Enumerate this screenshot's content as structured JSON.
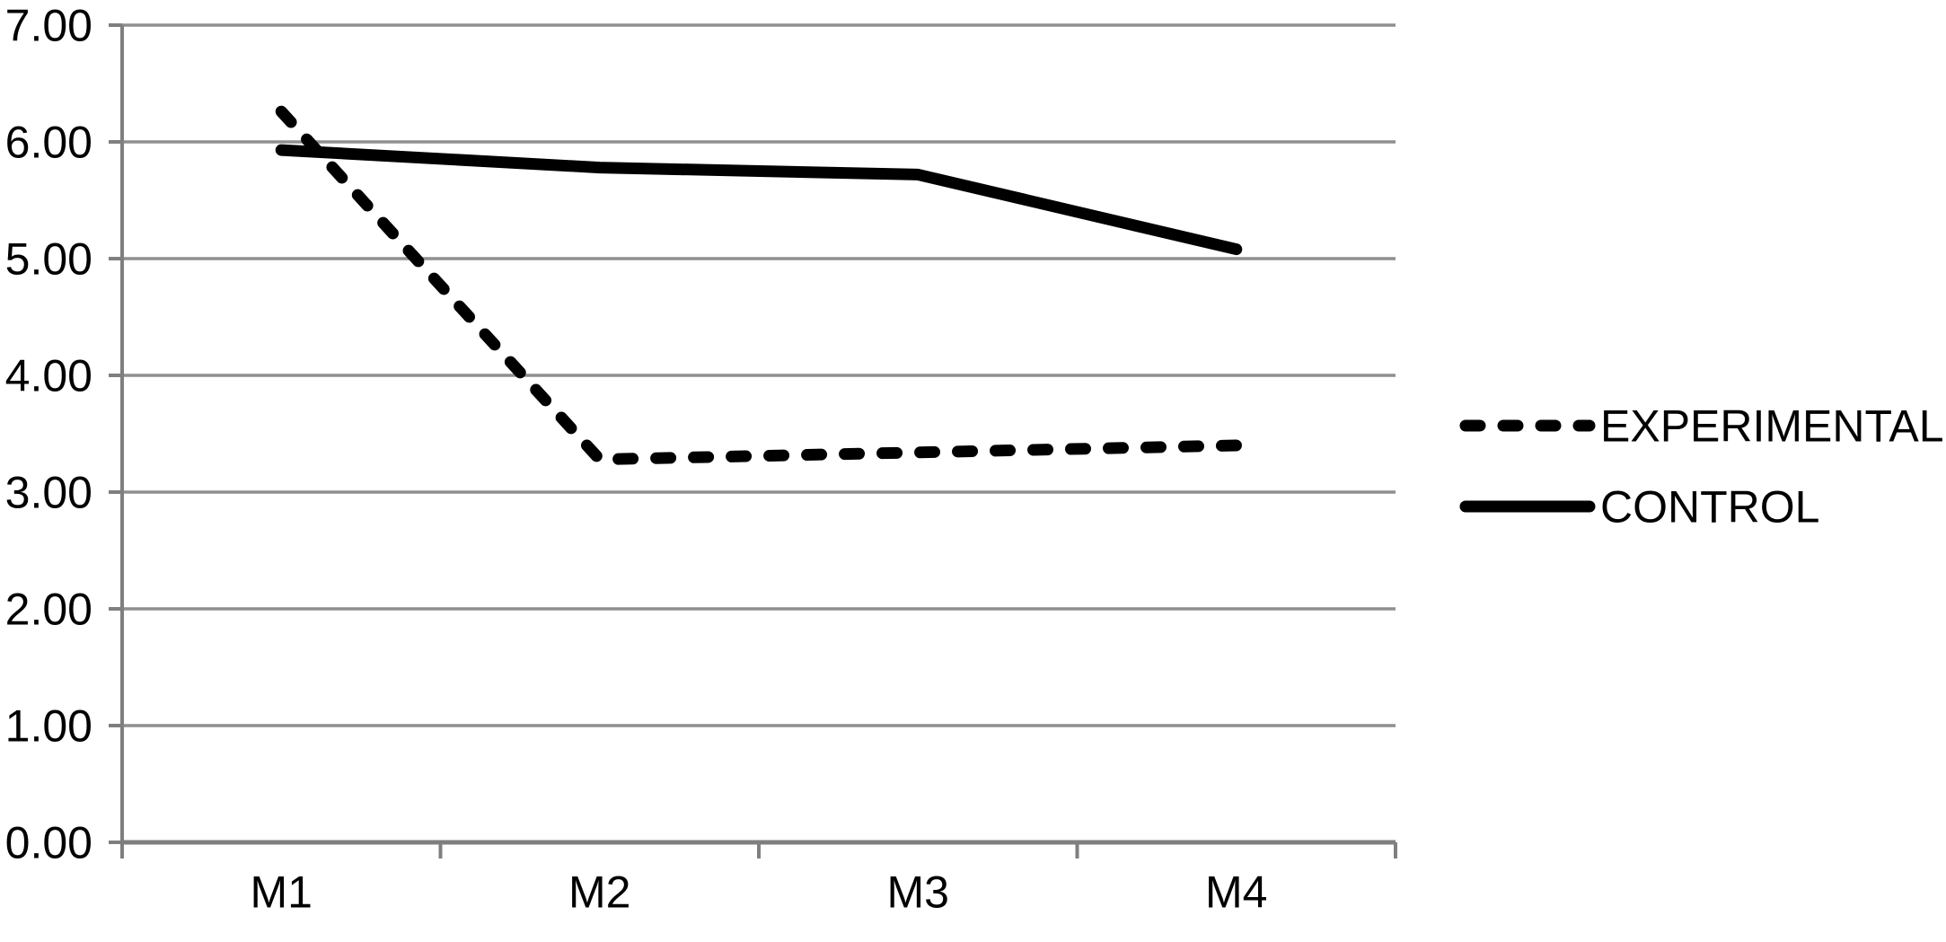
{
  "chart_data": {
    "type": "line",
    "title": "",
    "xlabel": "",
    "ylabel": "",
    "categories": [
      "M1",
      "M2",
      "M3",
      "M4"
    ],
    "series": [
      {
        "name": "EXPERIMENTAL",
        "style": "dashed",
        "color": "#000000",
        "values": [
          6.26,
          3.28,
          3.34,
          3.4
        ]
      },
      {
        "name": "CONTROL",
        "style": "solid",
        "color": "#000000",
        "values": [
          5.93,
          5.78,
          5.72,
          5.08
        ]
      }
    ],
    "ylim": [
      0,
      7
    ],
    "ytick_step": 1,
    "ytick_labels": [
      "0.00",
      "1.00",
      "2.00",
      "3.00",
      "4.00",
      "5.00",
      "6.00",
      "7.00"
    ],
    "grid": "horizontal-only",
    "gridline_color": "#8f8f8f",
    "axis_color": "#7f7f7f",
    "background_color": "#ffffff",
    "legend_position": "right-middle"
  }
}
